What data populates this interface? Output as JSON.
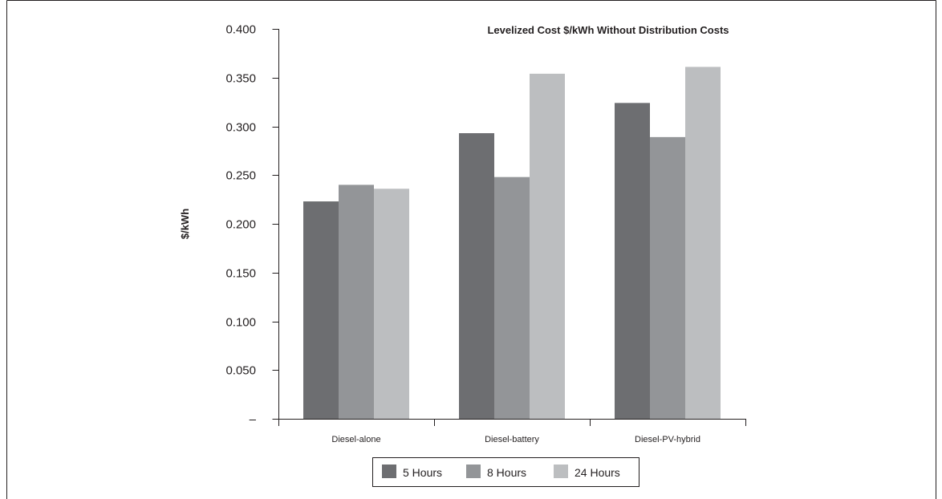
{
  "chart_data": {
    "type": "bar",
    "title": "Levelized Cost $/kWh Without Distribution Costs",
    "ylabel": "$/kWh",
    "xlabel": "",
    "ylim": [
      0,
      0.4
    ],
    "yticks": [
      {
        "value": 0,
        "label": "–"
      },
      {
        "value": 0.05,
        "label": "0.050"
      },
      {
        "value": 0.1,
        "label": "0.100"
      },
      {
        "value": 0.15,
        "label": "0.150"
      },
      {
        "value": 0.2,
        "label": "0.200"
      },
      {
        "value": 0.25,
        "label": "0.250"
      },
      {
        "value": 0.3,
        "label": "0.300"
      },
      {
        "value": 0.35,
        "label": "0.350"
      },
      {
        "value": 0.4,
        "label": "0.400"
      }
    ],
    "categories": [
      "Diesel-alone",
      "Diesel-battery",
      "Diesel-PV-hybrid"
    ],
    "series": [
      {
        "name": "5 Hours",
        "color": "#6d6e71",
        "values": [
          0.223,
          0.293,
          0.324
        ]
      },
      {
        "name": "8 Hours",
        "color": "#939598",
        "values": [
          0.24,
          0.248,
          0.289
        ]
      },
      {
        "name": "24 Hours",
        "color": "#bcbec0",
        "values": [
          0.236,
          0.354,
          0.361
        ]
      }
    ],
    "grid": false,
    "legend": "bottom-center"
  }
}
